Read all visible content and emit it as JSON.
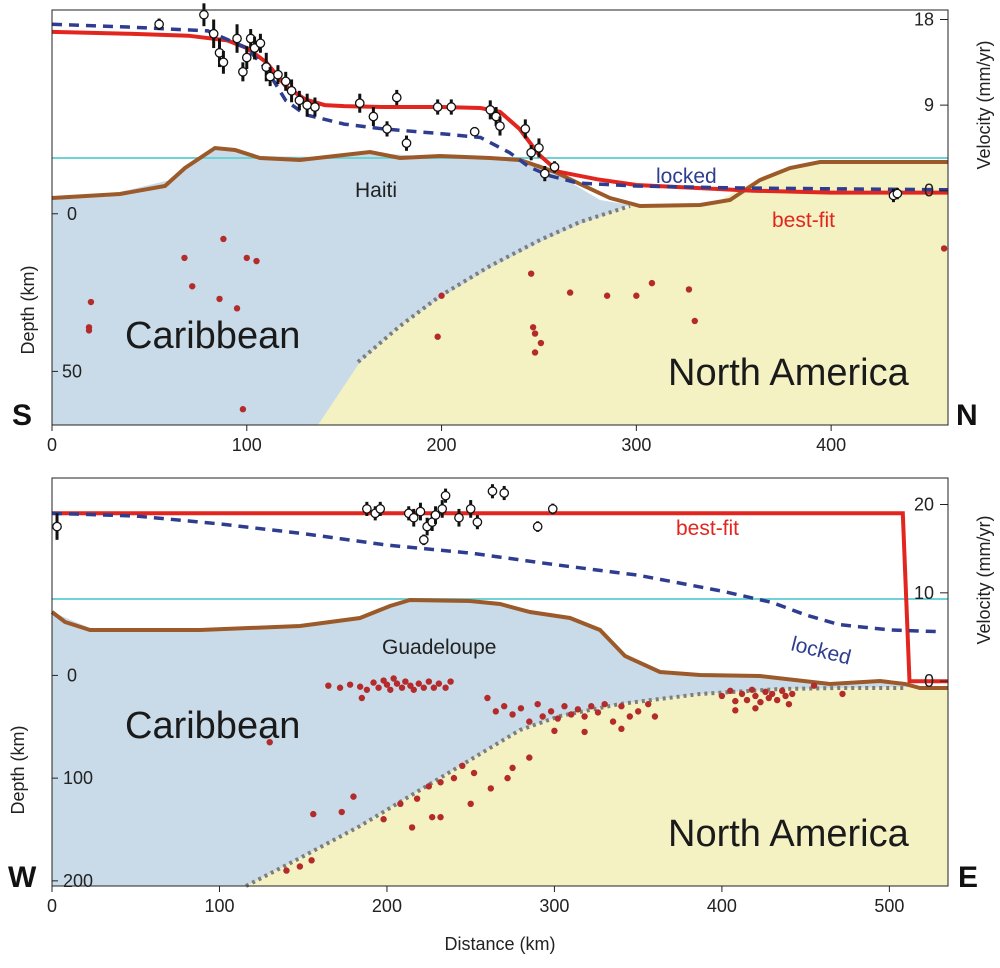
{
  "chart_data": [
    {
      "type": "line",
      "panel": "top",
      "xlabel": "",
      "ylabel_left": "Depth (km)",
      "ylabel_right": "Velocity (mm/yr)",
      "xlim": [
        0,
        460
      ],
      "xticks": [
        0,
        100,
        200,
        300,
        400
      ],
      "depth_ticks": [
        0,
        50
      ],
      "depth_range": [
        -5,
        67
      ],
      "velocity_ticks": [
        0,
        9,
        18
      ],
      "velocity_range": [
        -1.5,
        19
      ],
      "direction_left": "S",
      "direction_right": "N",
      "plate_left": "Caribbean",
      "plate_right": "North America",
      "location_label": "Haiti",
      "series": [
        {
          "name": "best-fit",
          "color": "#e2261f",
          "dash": false,
          "x": [
            0,
            40,
            70,
            90,
            100,
            110,
            120,
            130,
            140,
            150,
            170,
            200,
            220,
            230,
            240,
            250,
            260,
            280,
            300,
            330,
            360,
            400,
            460
          ],
          "y": [
            16.7,
            16.5,
            16.3,
            15.8,
            15.0,
            13.5,
            11.0,
            9.6,
            9.0,
            8.9,
            8.8,
            8.8,
            8.7,
            8.3,
            6.5,
            3.8,
            2.0,
            1.2,
            0.6,
            0.3,
            0.0,
            -0.2,
            -0.2
          ]
        },
        {
          "name": "locked",
          "color": "#2e3d8f",
          "dash": true,
          "x": [
            0,
            40,
            80,
            100,
            110,
            120,
            130,
            150,
            170,
            200,
            220,
            235,
            245,
            255,
            270,
            300,
            350,
            400,
            460
          ],
          "y": [
            17.5,
            17.2,
            16.8,
            15.0,
            12.8,
            9.5,
            8.0,
            7.0,
            6.5,
            6.0,
            5.6,
            4.0,
            2.5,
            1.6,
            0.8,
            0.5,
            0.3,
            0.2,
            0.1
          ]
        }
      ],
      "observations": [
        {
          "x": 55,
          "v": 17.5,
          "e": 0.6
        },
        {
          "x": 78,
          "v": 18.5,
          "e": 1.2
        },
        {
          "x": 83,
          "v": 16.5,
          "e": 1.5
        },
        {
          "x": 86,
          "v": 14.5,
          "e": 1.5
        },
        {
          "x": 88,
          "v": 13.5,
          "e": 1.2
        },
        {
          "x": 95,
          "v": 16.0,
          "e": 1.5
        },
        {
          "x": 98,
          "v": 12.5,
          "e": 1.0
        },
        {
          "x": 100,
          "v": 14.0,
          "e": 1.2
        },
        {
          "x": 102,
          "v": 16.0,
          "e": 1.0
        },
        {
          "x": 104,
          "v": 15.0,
          "e": 1.2
        },
        {
          "x": 107,
          "v": 15.5,
          "e": 1.0
        },
        {
          "x": 110,
          "v": 13.0,
          "e": 1.5
        },
        {
          "x": 112,
          "v": 12.0,
          "e": 1.0
        },
        {
          "x": 116,
          "v": 12.2,
          "e": 1.0
        },
        {
          "x": 120,
          "v": 11.5,
          "e": 1.0
        },
        {
          "x": 123,
          "v": 10.5,
          "e": 1.2
        },
        {
          "x": 127,
          "v": 9.5,
          "e": 1.0
        },
        {
          "x": 131,
          "v": 9.0,
          "e": 1.2
        },
        {
          "x": 135,
          "v": 8.8,
          "e": 1.0
        },
        {
          "x": 158,
          "v": 9.2,
          "e": 1.0
        },
        {
          "x": 165,
          "v": 7.8,
          "e": 1.0
        },
        {
          "x": 172,
          "v": 6.5,
          "e": 0.8
        },
        {
          "x": 177,
          "v": 9.8,
          "e": 0.8
        },
        {
          "x": 182,
          "v": 5.0,
          "e": 0.8
        },
        {
          "x": 198,
          "v": 8.8,
          "e": 0.8
        },
        {
          "x": 205,
          "v": 8.8,
          "e": 0.8
        },
        {
          "x": 217,
          "v": 6.2,
          "e": 0.4
        },
        {
          "x": 225,
          "v": 8.5,
          "e": 1.0
        },
        {
          "x": 228,
          "v": 7.8,
          "e": 1.0
        },
        {
          "x": 230,
          "v": 6.8,
          "e": 1.0
        },
        {
          "x": 243,
          "v": 6.5,
          "e": 1.0
        },
        {
          "x": 246,
          "v": 4.0,
          "e": 0.8
        },
        {
          "x": 250,
          "v": 4.5,
          "e": 1.0
        },
        {
          "x": 253,
          "v": 1.8,
          "e": 0.8
        },
        {
          "x": 258,
          "v": 2.5,
          "e": 0.6
        },
        {
          "x": 432,
          "v": -0.5,
          "e": 0.7
        },
        {
          "x": 434,
          "v": -0.3,
          "e": 0.6
        }
      ],
      "earthquakes": [
        {
          "x": 20,
          "d": 28
        },
        {
          "x": 19,
          "d": 36
        },
        {
          "x": 19,
          "d": 37
        },
        {
          "x": 68,
          "d": 14
        },
        {
          "x": 72,
          "d": 23
        },
        {
          "x": 88,
          "d": 8
        },
        {
          "x": 86,
          "d": 27
        },
        {
          "x": 95,
          "d": 30
        },
        {
          "x": 100,
          "d": 14
        },
        {
          "x": 105,
          "d": 15
        },
        {
          "x": 98,
          "d": 62
        },
        {
          "x": 200,
          "d": 26
        },
        {
          "x": 198,
          "d": 39
        },
        {
          "x": 246,
          "d": 19
        },
        {
          "x": 248,
          "d": 44
        },
        {
          "x": 247,
          "d": 36
        },
        {
          "x": 248,
          "d": 38
        },
        {
          "x": 251,
          "d": 41
        },
        {
          "x": 266,
          "d": 25
        },
        {
          "x": 285,
          "d": 26
        },
        {
          "x": 300,
          "d": 26
        },
        {
          "x": 308,
          "d": 22
        },
        {
          "x": 327,
          "d": 24
        },
        {
          "x": 330,
          "d": 34
        },
        {
          "x": 458,
          "d": 11
        }
      ]
    },
    {
      "type": "line",
      "panel": "bottom",
      "xlabel": "Distance (km)",
      "ylabel_left": "Depth (km)",
      "ylabel_right": "Velocity (mm/yr)",
      "xlim": [
        0,
        535
      ],
      "xticks": [
        0,
        100,
        200,
        300,
        400,
        500
      ],
      "depth_ticks": [
        0,
        100,
        200
      ],
      "depth_range": [
        -15,
        205
      ],
      "velocity_ticks": [
        0,
        10,
        20
      ],
      "velocity_range": [
        -1,
        23
      ],
      "direction_left": "W",
      "direction_right": "E",
      "plate_left": "Caribbean",
      "plate_right": "North America",
      "location_label": "Guadeloupe",
      "series": [
        {
          "name": "best-fit",
          "color": "#e2261f",
          "dash": false,
          "x": [
            0,
            100,
            200,
            300,
            400,
            500,
            508,
            512,
            535
          ],
          "y": [
            19.0,
            19.0,
            19.0,
            19.0,
            19.0,
            19.0,
            19.0,
            0.0,
            0.0
          ]
        },
        {
          "name": "locked",
          "color": "#2e3d8f",
          "dash": true,
          "x": [
            0,
            50,
            100,
            150,
            200,
            250,
            300,
            350,
            400,
            430,
            450,
            470,
            500,
            530
          ],
          "y": [
            19.0,
            18.7,
            17.8,
            16.7,
            15.4,
            14.5,
            13.2,
            12.0,
            10.2,
            8.9,
            7.5,
            6.4,
            5.8,
            5.6
          ]
        }
      ],
      "observations": [
        {
          "x": 3,
          "v": 17.5,
          "e": 1.5
        },
        {
          "x": 188,
          "v": 19.5,
          "e": 0.8
        },
        {
          "x": 193,
          "v": 19.0,
          "e": 0.8
        },
        {
          "x": 196,
          "v": 19.5,
          "e": 0.8
        },
        {
          "x": 213,
          "v": 19.0,
          "e": 0.8
        },
        {
          "x": 216,
          "v": 18.5,
          "e": 1.0
        },
        {
          "x": 220,
          "v": 19.2,
          "e": 1.0
        },
        {
          "x": 222,
          "v": 16.0,
          "e": 0.6
        },
        {
          "x": 224,
          "v": 17.5,
          "e": 1.0
        },
        {
          "x": 227,
          "v": 18.0,
          "e": 1.0
        },
        {
          "x": 229,
          "v": 18.8,
          "e": 1.0
        },
        {
          "x": 233,
          "v": 19.5,
          "e": 1.0
        },
        {
          "x": 235,
          "v": 21.0,
          "e": 0.8
        },
        {
          "x": 243,
          "v": 18.5,
          "e": 1.0
        },
        {
          "x": 250,
          "v": 19.5,
          "e": 1.0
        },
        {
          "x": 254,
          "v": 18.0,
          "e": 0.8
        },
        {
          "x": 263,
          "v": 21.5,
          "e": 0.8
        },
        {
          "x": 270,
          "v": 21.3,
          "e": 0.8
        },
        {
          "x": 290,
          "v": 17.5,
          "e": 0.6
        },
        {
          "x": 299,
          "v": 19.5,
          "e": 0.6
        }
      ],
      "earthquakes": [
        {
          "x": 165,
          "d": 10
        },
        {
          "x": 172,
          "d": 12
        },
        {
          "x": 178,
          "d": 9
        },
        {
          "x": 184,
          "d": 11
        },
        {
          "x": 185,
          "d": 22
        },
        {
          "x": 188,
          "d": 14
        },
        {
          "x": 192,
          "d": 7
        },
        {
          "x": 195,
          "d": 12
        },
        {
          "x": 198,
          "d": 5
        },
        {
          "x": 200,
          "d": 9
        },
        {
          "x": 202,
          "d": 14
        },
        {
          "x": 204,
          "d": 3
        },
        {
          "x": 206,
          "d": 8
        },
        {
          "x": 209,
          "d": 12
        },
        {
          "x": 211,
          "d": 6
        },
        {
          "x": 214,
          "d": 10
        },
        {
          "x": 216,
          "d": 14
        },
        {
          "x": 219,
          "d": 8
        },
        {
          "x": 222,
          "d": 12
        },
        {
          "x": 225,
          "d": 6
        },
        {
          "x": 228,
          "d": 12
        },
        {
          "x": 231,
          "d": 8
        },
        {
          "x": 235,
          "d": 12
        },
        {
          "x": 238,
          "d": 6
        },
        {
          "x": 270,
          "d": 30
        },
        {
          "x": 275,
          "d": 38
        },
        {
          "x": 280,
          "d": 32
        },
        {
          "x": 285,
          "d": 45
        },
        {
          "x": 290,
          "d": 28
        },
        {
          "x": 293,
          "d": 40
        },
        {
          "x": 298,
          "d": 35
        },
        {
          "x": 302,
          "d": 42
        },
        {
          "x": 306,
          "d": 30
        },
        {
          "x": 310,
          "d": 38
        },
        {
          "x": 314,
          "d": 33
        },
        {
          "x": 318,
          "d": 40
        },
        {
          "x": 322,
          "d": 30
        },
        {
          "x": 326,
          "d": 36
        },
        {
          "x": 330,
          "d": 28
        },
        {
          "x": 335,
          "d": 45
        },
        {
          "x": 340,
          "d": 30
        },
        {
          "x": 345,
          "d": 40
        },
        {
          "x": 350,
          "d": 35
        },
        {
          "x": 356,
          "d": 28
        },
        {
          "x": 360,
          "d": 40
        },
        {
          "x": 340,
          "d": 52
        },
        {
          "x": 318,
          "d": 55
        },
        {
          "x": 300,
          "d": 54
        },
        {
          "x": 400,
          "d": 20
        },
        {
          "x": 405,
          "d": 15
        },
        {
          "x": 408,
          "d": 25
        },
        {
          "x": 412,
          "d": 18
        },
        {
          "x": 415,
          "d": 24
        },
        {
          "x": 418,
          "d": 14
        },
        {
          "x": 420,
          "d": 20
        },
        {
          "x": 423,
          "d": 26
        },
        {
          "x": 426,
          "d": 16
        },
        {
          "x": 428,
          "d": 22
        },
        {
          "x": 430,
          "d": 18
        },
        {
          "x": 433,
          "d": 24
        },
        {
          "x": 436,
          "d": 15
        },
        {
          "x": 438,
          "d": 20
        },
        {
          "x": 442,
          "d": 18
        },
        {
          "x": 408,
          "d": 34
        },
        {
          "x": 420,
          "d": 32
        },
        {
          "x": 440,
          "d": 28
        },
        {
          "x": 455,
          "d": 10
        },
        {
          "x": 472,
          "d": 18
        },
        {
          "x": 260,
          "d": 22
        },
        {
          "x": 265,
          "d": 35
        },
        {
          "x": 245,
          "d": 88
        },
        {
          "x": 252,
          "d": 95
        },
        {
          "x": 240,
          "d": 100
        },
        {
          "x": 232,
          "d": 104
        },
        {
          "x": 225,
          "d": 108
        },
        {
          "x": 218,
          "d": 120
        },
        {
          "x": 208,
          "d": 125
        },
        {
          "x": 198,
          "d": 140
        },
        {
          "x": 215,
          "d": 148
        },
        {
          "x": 180,
          "d": 118
        },
        {
          "x": 173,
          "d": 133
        },
        {
          "x": 156,
          "d": 135
        },
        {
          "x": 155,
          "d": 180
        },
        {
          "x": 148,
          "d": 186
        },
        {
          "x": 140,
          "d": 190
        },
        {
          "x": 232,
          "d": 138
        },
        {
          "x": 250,
          "d": 125
        },
        {
          "x": 262,
          "d": 110
        },
        {
          "x": 275,
          "d": 90
        },
        {
          "x": 285,
          "d": 80
        },
        {
          "x": 130,
          "d": 65
        },
        {
          "x": 272,
          "d": 100
        },
        {
          "x": 227,
          "d": 138
        }
      ]
    }
  ],
  "labels": {
    "best_fit": "best-fit",
    "locked": "locked"
  },
  "colors": {
    "caribbean_fill": "#c9dbe8",
    "north_america_fill": "#f4f2c3",
    "topography": "#9c5a2a",
    "slab_boundary": "#7d7d7d",
    "sea_level": "#6fd3d6",
    "best_fit": "#e2261f",
    "locked": "#2e3d8f",
    "earthquake": "#b42b2b"
  }
}
